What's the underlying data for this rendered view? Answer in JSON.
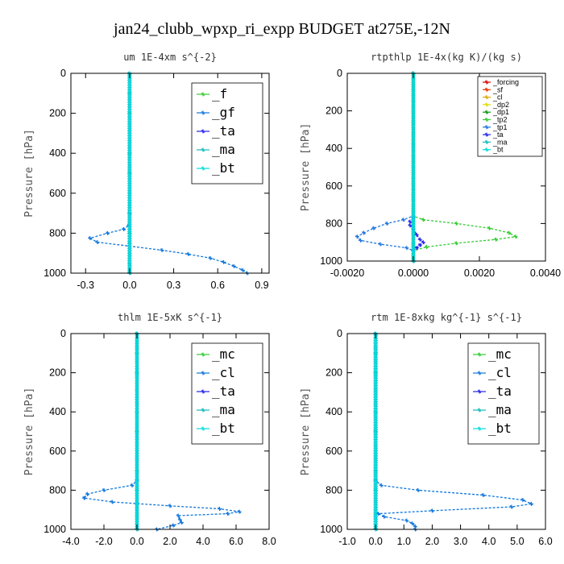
{
  "title": "jan24_clubb_wpxp_ri_expp  BUDGET at275E,-12N",
  "chart_data": [
    {
      "type": "line",
      "title": "um   1E-4xm s^{-2}",
      "ylabel": "Pressure [hPa]",
      "xlim": [
        -0.4,
        0.95
      ],
      "ylim": [
        1000,
        0
      ],
      "xticks": [
        -0.3,
        0.0,
        0.3,
        0.6,
        0.9
      ],
      "xtick_labels": [
        "-0.3",
        "0.0",
        "0.3",
        "0.6",
        "0.9"
      ],
      "yticks": [
        0,
        200,
        400,
        600,
        800,
        1000
      ],
      "ytick_labels": [
        "0",
        "200",
        "400",
        "600",
        "800",
        "1000"
      ],
      "legend_placement": "top-right",
      "legend_size": "large",
      "series": [
        {
          "name": "_f",
          "color": "#33cc33",
          "y": [
            0,
            100,
            200,
            300,
            400,
            500,
            600,
            700,
            800,
            850,
            900,
            950,
            1000
          ],
          "x": [
            0,
            0,
            0,
            0,
            0,
            0,
            0,
            0,
            0,
            0,
            0,
            0,
            0
          ]
        },
        {
          "name": "_gf",
          "color": "#1177dd",
          "y": [
            0,
            700,
            760,
            780,
            800,
            825,
            845,
            865,
            885,
            905,
            925,
            945,
            965,
            985,
            1000
          ],
          "x": [
            0,
            0,
            -0.005,
            -0.04,
            -0.15,
            -0.27,
            -0.22,
            0.0,
            0.22,
            0.4,
            0.55,
            0.64,
            0.71,
            0.77,
            0.8
          ]
        },
        {
          "name": "_ta",
          "color": "#2222ee",
          "y": [
            0,
            1000
          ],
          "x": [
            0,
            0
          ]
        },
        {
          "name": "_ma",
          "color": "#11bbbb",
          "y": [
            0,
            1000
          ],
          "x": [
            0,
            0
          ]
        },
        {
          "name": "_bt",
          "color": "#00dddd",
          "y": [
            0,
            1000
          ],
          "x": [
            0,
            0
          ]
        }
      ]
    },
    {
      "type": "line",
      "title": "rtpthlp   1E-4x(kg K)/(kg s)",
      "ylabel": "Pressure [hPa]",
      "xlim": [
        -0.002,
        0.004
      ],
      "ylim": [
        1000,
        0
      ],
      "xticks": [
        -0.002,
        0.0,
        0.002,
        0.004
      ],
      "xtick_labels": [
        "-0.0020",
        "0.0000",
        "0.0020",
        "0.0040"
      ],
      "yticks": [
        0,
        200,
        400,
        600,
        800,
        1000
      ],
      "ytick_labels": [
        "0",
        "200",
        "400",
        "600",
        "800",
        "1000"
      ],
      "legend_placement": "top-right",
      "legend_size": "small",
      "series": [
        {
          "name": "_forcing",
          "color": "#dd0000",
          "y": [
            0,
            1000
          ],
          "x": [
            0,
            0
          ]
        },
        {
          "name": "_sf",
          "color": "#ee3300",
          "y": [
            0,
            1000
          ],
          "x": [
            0,
            0
          ]
        },
        {
          "name": "_cl",
          "color": "#ddaa00",
          "y": [
            0,
            1000
          ],
          "x": [
            0,
            0
          ]
        },
        {
          "name": "_dp2",
          "color": "#dddd00",
          "y": [
            0,
            1000
          ],
          "x": [
            0,
            0
          ]
        },
        {
          "name": "_dp1",
          "color": "#119911",
          "y": [
            0,
            1000
          ],
          "x": [
            0,
            0
          ]
        },
        {
          "name": "_tp2",
          "color": "#33cc33",
          "y": [
            0,
            760,
            780,
            800,
            825,
            850,
            870,
            885,
            905,
            925,
            945,
            1000
          ],
          "x": [
            0,
            0,
            0.0003,
            0.0013,
            0.0023,
            0.0029,
            0.0031,
            0.0025,
            0.0013,
            0.0004,
            0.0,
            0.0
          ]
        },
        {
          "name": "_tp1",
          "color": "#2277dd",
          "y": [
            0,
            760,
            780,
            800,
            825,
            850,
            870,
            890,
            910,
            930,
            945,
            1000
          ],
          "x": [
            0,
            0,
            -0.0003,
            -0.0008,
            -0.0012,
            -0.0015,
            -0.0017,
            -0.0016,
            -0.001,
            -0.0002,
            0.0,
            0.0
          ]
        },
        {
          "name": "_ta",
          "color": "#2222ee",
          "y": [
            0,
            770,
            790,
            810,
            830,
            860,
            885,
            900,
            915,
            930,
            945,
            1000
          ],
          "x": [
            0,
            0,
            -0.0001,
            -0.0001,
            0.0,
            0.0001,
            0.0002,
            0.0003,
            0.0002,
            0.0001,
            0.0,
            0.0
          ]
        },
        {
          "name": "_ma",
          "color": "#11bbbb",
          "y": [
            0,
            1000
          ],
          "x": [
            0,
            0
          ]
        },
        {
          "name": "_bt",
          "color": "#00dddd",
          "y": [
            0,
            1000
          ],
          "x": [
            0,
            0
          ]
        }
      ]
    },
    {
      "type": "line",
      "title": "thlm   1E-5xK s^{-1}",
      "ylabel": "Pressure [hPa]",
      "xlim": [
        -4.0,
        8.0
      ],
      "ylim": [
        1000,
        0
      ],
      "xticks": [
        -4,
        -2,
        0,
        2,
        4,
        6,
        8
      ],
      "xtick_labels": [
        "-4.0",
        "-2.0",
        "0.0",
        "2.0",
        "4.0",
        "6.0",
        "8.0"
      ],
      "yticks": [
        0,
        200,
        400,
        600,
        800,
        1000
      ],
      "ytick_labels": [
        "0",
        "200",
        "400",
        "600",
        "800",
        "1000"
      ],
      "legend_placement": "top-right",
      "legend_size": "large",
      "series": [
        {
          "name": "_mc",
          "color": "#33cc33",
          "y": [
            0,
            100,
            200,
            300,
            400,
            500,
            600,
            700,
            800,
            900,
            1000
          ],
          "x": [
            0,
            0,
            0,
            0,
            0,
            0,
            0,
            0,
            0,
            0,
            0
          ]
        },
        {
          "name": "_cl",
          "color": "#1177dd",
          "y": [
            0,
            750,
            775,
            800,
            820,
            840,
            860,
            880,
            895,
            910,
            920,
            930,
            950,
            965,
            980,
            1000
          ],
          "x": [
            0,
            0,
            -0.3,
            -2.0,
            -3.0,
            -3.2,
            -1.5,
            2.0,
            5.0,
            6.2,
            5.5,
            2.5,
            2.6,
            2.7,
            2.2,
            1.2
          ]
        },
        {
          "name": "_ta",
          "color": "#2222ee",
          "y": [
            0,
            1000
          ],
          "x": [
            0,
            0
          ]
        },
        {
          "name": "_ma",
          "color": "#11bbbb",
          "y": [
            0,
            1000
          ],
          "x": [
            0,
            0
          ]
        },
        {
          "name": "_bt",
          "color": "#00dddd",
          "y": [
            0,
            1000
          ],
          "x": [
            0,
            0
          ]
        }
      ]
    },
    {
      "type": "line",
      "title": "rtm   1E-8xkg kg^{-1} s^{-1}",
      "ylabel": "Pressure [hPa]",
      "xlim": [
        -1.0,
        6.0
      ],
      "ylim": [
        1000,
        0
      ],
      "xticks": [
        -1,
        0,
        1,
        2,
        3,
        4,
        5,
        6
      ],
      "xtick_labels": [
        "-1.0",
        "0.0",
        "1.0",
        "2.0",
        "3.0",
        "4.0",
        "5.0",
        "6.0"
      ],
      "yticks": [
        0,
        200,
        400,
        600,
        800,
        1000
      ],
      "ytick_labels": [
        "0",
        "200",
        "400",
        "600",
        "800",
        "1000"
      ],
      "legend_placement": "top-right",
      "legend_size": "large",
      "series": [
        {
          "name": "_mc",
          "color": "#33cc33",
          "y": [
            0,
            100,
            200,
            300,
            400,
            500,
            600,
            700,
            800,
            900,
            1000
          ],
          "x": [
            0,
            0,
            0,
            0,
            0,
            0,
            0,
            0,
            0,
            0,
            0
          ]
        },
        {
          "name": "_cl",
          "color": "#1177dd",
          "y": [
            0,
            750,
            775,
            800,
            825,
            850,
            870,
            885,
            905,
            920,
            935,
            955,
            970,
            985,
            1000
          ],
          "x": [
            0,
            0,
            0.2,
            1.5,
            3.8,
            5.2,
            5.5,
            4.8,
            2.0,
            0.1,
            0.3,
            1.1,
            1.3,
            1.4,
            1.4
          ]
        },
        {
          "name": "_ta",
          "color": "#2222ee",
          "y": [
            0,
            1000
          ],
          "x": [
            0,
            0
          ]
        },
        {
          "name": "_ma",
          "color": "#11bbbb",
          "y": [
            0,
            1000
          ],
          "x": [
            0,
            0
          ]
        },
        {
          "name": "_bt",
          "color": "#00dddd",
          "y": [
            0,
            1000
          ],
          "x": [
            0,
            0
          ]
        }
      ]
    }
  ]
}
